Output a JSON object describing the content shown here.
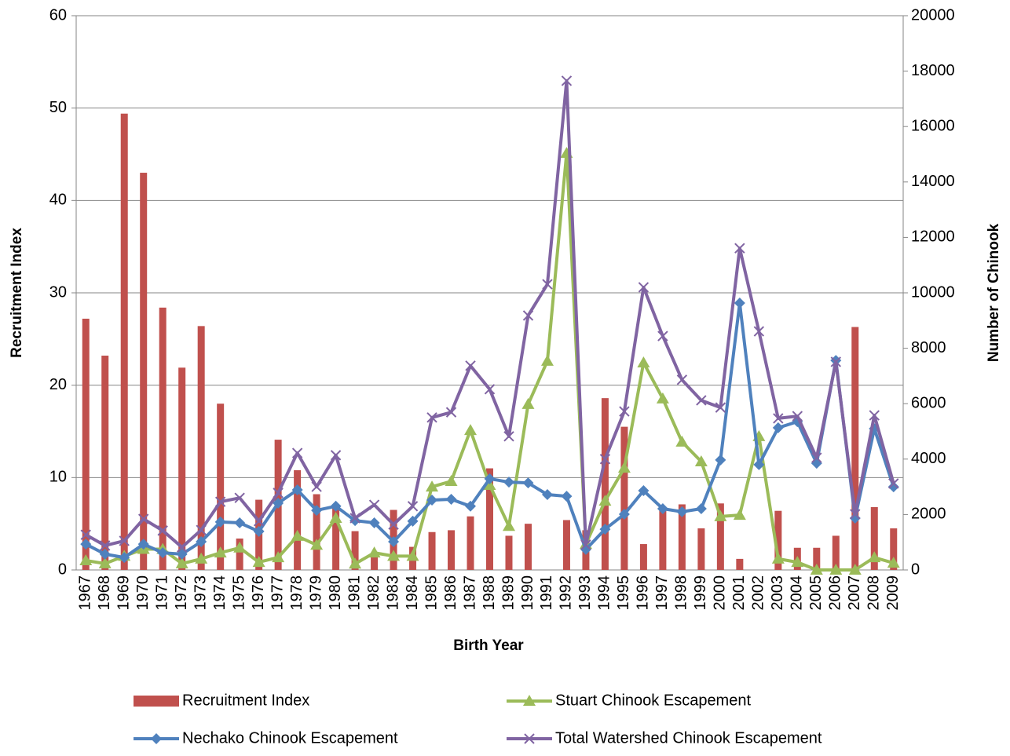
{
  "chart_data": {
    "type": "combo",
    "x_label": "Birth Year",
    "y_label": "Recruitment Index",
    "y2_label": "Number of Chinook",
    "categories": [
      "1967",
      "1968",
      "1969",
      "1970",
      "1971",
      "1972",
      "1973",
      "1974",
      "1975",
      "1976",
      "1977",
      "1978",
      "1979",
      "1980",
      "1981",
      "1982",
      "1983",
      "1984",
      "1985",
      "1986",
      "1987",
      "1988",
      "1989",
      "1990",
      "1991",
      "1992",
      "1993",
      "1994",
      "1995",
      "1996",
      "1997",
      "1998",
      "1999",
      "2000",
      "2001",
      "2002",
      "2003",
      "2004",
      "2005",
      "2006",
      "2007",
      "2008",
      "2009"
    ],
    "ylim": [
      0,
      60
    ],
    "yticks": [
      0,
      10,
      20,
      30,
      40,
      50,
      60
    ],
    "y2lim": [
      0,
      20000
    ],
    "y2ticks": [
      0,
      2000,
      4000,
      6000,
      8000,
      10000,
      12000,
      14000,
      16000,
      18000,
      20000
    ],
    "grid": true,
    "series": [
      {
        "name": "Recruitment Index",
        "type": "bar",
        "color": "#c0504d",
        "values": [
          27.2,
          23.2,
          49.4,
          43.0,
          28.4,
          21.9,
          26.4,
          18.0,
          3.4,
          7.6,
          14.1,
          10.8,
          8.2,
          6.8,
          4.2,
          1.5,
          6.5,
          2.5,
          4.1,
          4.3,
          5.8,
          11.0,
          3.7,
          5.0,
          0,
          5.4,
          4.3,
          18.6,
          15.5,
          2.8,
          6.5,
          7.1,
          4.5,
          7.2,
          1.2,
          0,
          6.4,
          2.4,
          2.4,
          3.7,
          26.3,
          6.8,
          4.5
        ]
      },
      {
        "name": "Stuart Chinook Escapement",
        "type": "line",
        "axis": "y2",
        "marker": "triangle",
        "color": "#9bbb59",
        "values": [
          340,
          230,
          500,
          750,
          750,
          230,
          400,
          620,
          800,
          280,
          450,
          1220,
          900,
          1870,
          220,
          620,
          500,
          500,
          3000,
          3200,
          5040,
          3060,
          1580,
          5980,
          7540,
          15040,
          930,
          2490,
          3680,
          7480,
          6180,
          4620,
          3910,
          1930,
          1980,
          4820,
          400,
          280,
          0,
          0,
          0,
          450,
          250
        ]
      },
      {
        "name": "Nechako Chinook Escapement",
        "type": "line",
        "axis": "y2",
        "marker": "diamond",
        "color": "#4f81bd",
        "values": [
          930,
          570,
          450,
          930,
          620,
          570,
          1020,
          1730,
          1700,
          1390,
          2410,
          2890,
          2150,
          2300,
          1780,
          1700,
          1020,
          1760,
          2520,
          2550,
          2300,
          3290,
          3170,
          3140,
          2720,
          2660,
          740,
          1470,
          2010,
          2860,
          2210,
          2100,
          2210,
          3970,
          9630,
          3800,
          5130,
          5350,
          3850,
          7560,
          1870,
          5100,
          3000
        ]
      },
      {
        "name": "Total Watershed Chinook Escapement",
        "type": "line",
        "axis": "y2",
        "marker": "x",
        "color": "#8064a2",
        "values": [
          1270,
          880,
          1050,
          1840,
          1420,
          820,
          1440,
          2460,
          2600,
          1760,
          2780,
          4220,
          3000,
          4140,
          1870,
          2350,
          1640,
          2300,
          5500,
          5690,
          7370,
          6520,
          4820,
          9180,
          10310,
          17650,
          910,
          4000,
          5720,
          10200,
          8440,
          6860,
          6120,
          5860,
          11610,
          8610,
          5470,
          5550,
          4050,
          7510,
          2010,
          5580,
          3120
        ]
      }
    ]
  }
}
